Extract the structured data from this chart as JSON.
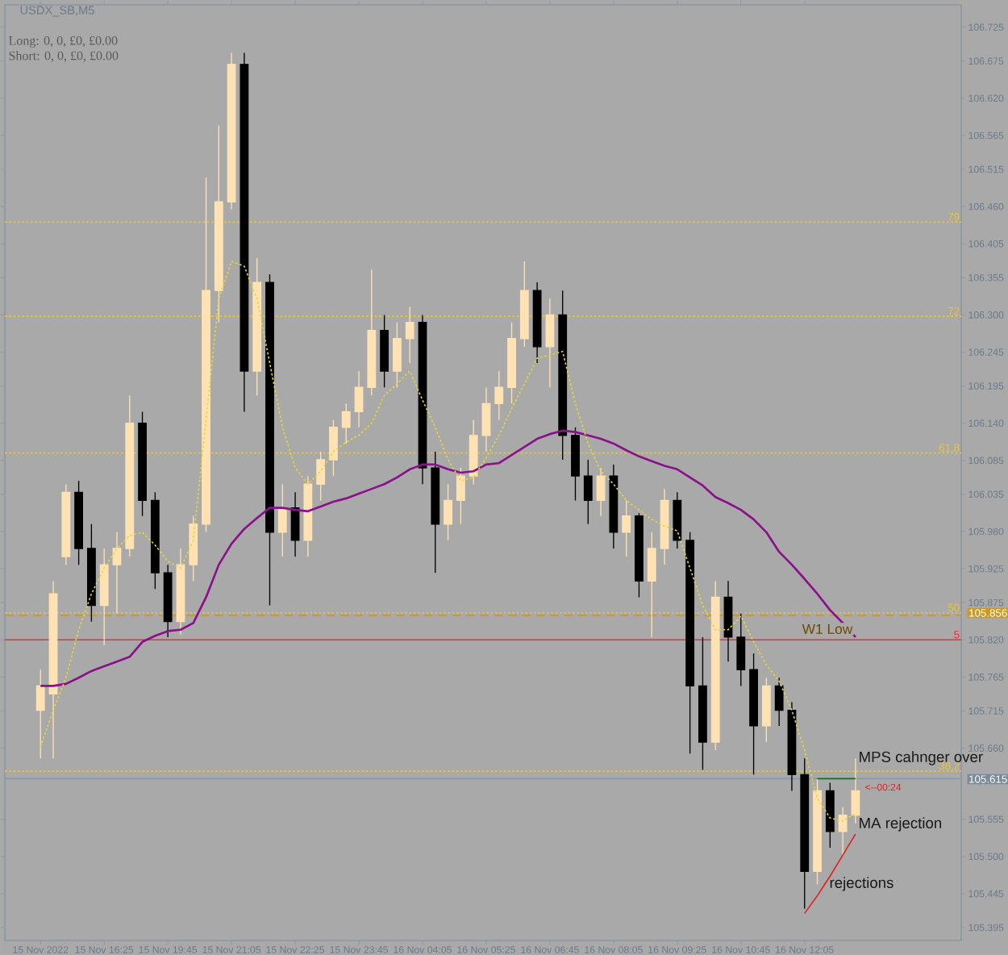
{
  "chart_data": {
    "type": "candlestick",
    "title": "USDX_SB,M5",
    "categories": [
      "15 Nov 2022",
      null,
      null,
      null,
      null,
      "15 Nov 16:25",
      null,
      null,
      null,
      null,
      "15 Nov 19:45",
      null,
      null,
      null,
      null,
      "15 Nov 21:05",
      null,
      null,
      null,
      null,
      "15 Nov 22:25",
      null,
      null,
      null,
      null,
      "15 Nov 23:45",
      null,
      null,
      null,
      null,
      "16 Nov 04:05",
      null,
      null,
      null,
      null,
      "16 Nov 05:25",
      null,
      null,
      null,
      null,
      "16 Nov 06:45",
      null,
      null,
      null,
      null,
      "16 Nov 08:05",
      null,
      null,
      null,
      null,
      "16 Nov 09:25",
      null,
      null,
      null,
      null,
      "16 Nov 10:45",
      null,
      null,
      null,
      null,
      "16 Nov 12:05",
      null,
      null,
      null,
      null
    ],
    "ohlc": [
      [
        105.716,
        105.776,
        105.645,
        105.752
      ],
      [
        105.74,
        105.907,
        105.645,
        105.888
      ],
      [
        105.943,
        106.05,
        105.931,
        106.038
      ],
      [
        106.038,
        106.055,
        105.931,
        105.955
      ],
      [
        105.955,
        105.991,
        105.847,
        105.871
      ],
      [
        105.871,
        105.955,
        105.812,
        105.931
      ],
      [
        105.931,
        105.979,
        105.859,
        105.955
      ],
      [
        105.955,
        106.181,
        105.943,
        106.14
      ],
      [
        106.14,
        106.157,
        106.003,
        106.026
      ],
      [
        106.026,
        106.038,
        105.895,
        105.919
      ],
      [
        105.919,
        105.931,
        105.824,
        105.847
      ],
      [
        105.847,
        105.955,
        105.828,
        105.931
      ],
      [
        105.931,
        106.003,
        105.907,
        105.991
      ],
      [
        105.991,
        106.503,
        105.979,
        106.336
      ],
      [
        106.336,
        106.58,
        106.289,
        106.467
      ],
      [
        106.467,
        106.687,
        106.456,
        106.67
      ],
      [
        106.67,
        106.687,
        106.157,
        106.217
      ],
      [
        106.217,
        106.384,
        106.181,
        106.348
      ],
      [
        106.348,
        106.36,
        105.871,
        105.979
      ],
      [
        105.979,
        106.05,
        105.943,
        106.015
      ],
      [
        106.015,
        106.038,
        105.943,
        105.967
      ],
      [
        105.967,
        106.062,
        105.943,
        106.05
      ],
      [
        106.05,
        106.098,
        106.026,
        106.086
      ],
      [
        106.086,
        106.145,
        106.062,
        106.134
      ],
      [
        106.134,
        106.169,
        106.11,
        106.157
      ],
      [
        106.157,
        106.217,
        106.134,
        106.193
      ],
      [
        106.193,
        106.367,
        106.181,
        106.277
      ],
      [
        106.277,
        106.3,
        106.193,
        106.217
      ],
      [
        106.217,
        106.289,
        106.193,
        106.265
      ],
      [
        106.265,
        106.312,
        106.229,
        106.289
      ],
      [
        106.289,
        106.3,
        106.05,
        106.074
      ],
      [
        106.074,
        106.098,
        105.919,
        105.991
      ],
      [
        105.991,
        106.05,
        105.967,
        106.026
      ],
      [
        106.026,
        106.074,
        105.991,
        106.062
      ],
      [
        106.062,
        106.145,
        106.05,
        106.122
      ],
      [
        106.122,
        106.193,
        106.098,
        106.169
      ],
      [
        106.169,
        106.217,
        106.145,
        106.193
      ],
      [
        106.193,
        106.289,
        106.169,
        106.265
      ],
      [
        106.265,
        106.379,
        106.253,
        106.336
      ],
      [
        106.336,
        106.348,
        106.229,
        106.253
      ],
      [
        106.253,
        106.324,
        106.193,
        106.3
      ],
      [
        106.3,
        106.336,
        106.086,
        106.122
      ],
      [
        106.122,
        106.134,
        106.026,
        106.062
      ],
      [
        106.062,
        106.086,
        105.991,
        106.026
      ],
      [
        106.026,
        106.074,
        106.003,
        106.062
      ],
      [
        106.062,
        106.079,
        105.955,
        105.979
      ],
      [
        105.979,
        106.026,
        105.943,
        106.003
      ],
      [
        106.003,
        106.007,
        105.883,
        105.907
      ],
      [
        105.907,
        105.979,
        105.824,
        105.955
      ],
      [
        105.955,
        106.043,
        105.931,
        106.026
      ],
      [
        106.026,
        106.038,
        105.955,
        105.967
      ],
      [
        105.967,
        105.979,
        105.652,
        105.752
      ],
      [
        105.752,
        105.824,
        105.628,
        105.669
      ],
      [
        105.669,
        105.907,
        105.657,
        105.883
      ],
      [
        105.883,
        105.907,
        105.788,
        105.824
      ],
      [
        105.824,
        105.859,
        105.752,
        105.776
      ],
      [
        105.776,
        105.8,
        105.621,
        105.693
      ],
      [
        105.693,
        105.764,
        105.669,
        105.752
      ],
      [
        105.752,
        105.764,
        105.693,
        105.716
      ],
      [
        105.716,
        105.728,
        105.597,
        105.621
      ],
      [
        105.621,
        105.645,
        105.423,
        105.478
      ],
      [
        105.478,
        105.614,
        105.459,
        105.597
      ],
      [
        105.597,
        105.609,
        105.513,
        105.537
      ],
      [
        105.537,
        105.573,
        105.502,
        105.561
      ],
      [
        105.561,
        105.645,
        105.549,
        105.597
      ]
    ],
    "colors": [
      "#ffe2b4",
      "#ffe2b4",
      "#ffe2b4",
      "#000000",
      "#000000",
      "#ffe2b4",
      "#ffe2b4",
      "#ffe2b4",
      "#000000",
      "#000000",
      "#000000",
      "#ffe2b4",
      "#ffe2b4",
      "#ffe2b4",
      "#ffe2b4",
      "#ffe2b4",
      "#000000",
      "#ffe2b4",
      "#000000",
      "#ffe2b4",
      "#000000",
      "#ffe2b4",
      "#ffe2b4",
      "#ffe2b4",
      "#ffe2b4",
      "#ffe2b4",
      "#ffe2b4",
      "#000000",
      "#ffe2b4",
      "#ffe2b4",
      "#000000",
      "#000000",
      "#ffe2b4",
      "#ffe2b4",
      "#ffe2b4",
      "#ffe2b4",
      "#ffe2b4",
      "#ffe2b4",
      "#ffe2b4",
      "#000000",
      "#ffe2b4",
      "#000000",
      "#000000",
      "#000000",
      "#ffe2b4",
      "#000000",
      "#ffe2b4",
      "#000000",
      "#ffe2b4",
      "#ffe2b4",
      "#000000",
      "#000000",
      "#000000",
      "#ffe2b4",
      "#000000",
      "#000000",
      "#000000",
      "#ffe2b4",
      "#000000",
      "#000000",
      "#000000",
      "#ffe2b4",
      "#000000",
      "#ffe2b4",
      "#ffe2b4"
    ],
    "series": [
      {
        "type": "line",
        "color": "#8b108b",
        "line_style": "solid",
        "values": [
          105.752,
          105.752,
          105.755,
          105.764,
          105.774,
          105.781,
          105.788,
          105.795,
          105.817,
          105.826,
          105.833,
          105.835,
          105.845,
          105.883,
          105.931,
          105.962,
          105.984,
          106.0,
          106.015,
          106.015,
          106.012,
          106.01,
          106.017,
          106.024,
          106.029,
          106.036,
          106.043,
          106.05,
          106.06,
          106.072,
          106.079,
          106.079,
          106.072,
          106.067,
          106.069,
          106.079,
          106.081,
          106.093,
          106.105,
          106.117,
          106.124,
          106.129,
          106.127,
          106.122,
          106.117,
          106.11,
          106.1,
          106.091,
          106.084,
          106.077,
          106.072,
          106.06,
          106.048,
          106.031,
          106.022,
          106.012,
          105.998,
          105.979,
          105.95,
          105.931,
          105.91,
          105.888,
          105.864,
          105.845,
          105.824
        ]
      },
      {
        "type": "line",
        "color": "#e8d830",
        "line_style": "dotted",
        "values": [
          105.662,
          105.716,
          105.764,
          105.835,
          105.888,
          105.926,
          105.955,
          105.974,
          105.979,
          105.96,
          105.936,
          105.926,
          105.967,
          106.145,
          106.324,
          106.379,
          106.372,
          106.324,
          106.229,
          106.134,
          106.074,
          106.05,
          106.069,
          106.098,
          106.112,
          106.122,
          106.14,
          106.181,
          106.198,
          106.217,
          106.174,
          106.134,
          106.086,
          106.055,
          106.06,
          106.089,
          106.122,
          106.162,
          106.198,
          106.236,
          106.241,
          106.246,
          106.169,
          106.11,
          106.069,
          106.05,
          106.026,
          106.012,
          105.998,
          105.988,
          105.981,
          105.926,
          105.871,
          105.835,
          105.835,
          105.855,
          105.817,
          105.783,
          105.759,
          105.716,
          105.657,
          105.586,
          105.557,
          105.552,
          105.564
        ]
      },
      {
        "type": "line",
        "color": "#0a7a0a",
        "line_style": "solid",
        "values": [
          null,
          null,
          null,
          null,
          null,
          null,
          null,
          null,
          null,
          null,
          null,
          null,
          null,
          null,
          null,
          null,
          null,
          null,
          null,
          null,
          null,
          null,
          null,
          null,
          null,
          null,
          null,
          null,
          null,
          null,
          null,
          null,
          null,
          null,
          null,
          null,
          null,
          null,
          null,
          null,
          null,
          null,
          null,
          null,
          null,
          null,
          null,
          null,
          null,
          null,
          null,
          null,
          null,
          null,
          null,
          null,
          null,
          null,
          null,
          null,
          null,
          105.615,
          105.615,
          105.615,
          105.615
        ]
      },
      {
        "type": "line",
        "color": "#e02020",
        "line_style": "solid",
        "values": [
          null,
          null,
          null,
          null,
          null,
          null,
          null,
          null,
          null,
          null,
          null,
          null,
          null,
          null,
          null,
          null,
          null,
          null,
          null,
          null,
          null,
          null,
          null,
          null,
          null,
          null,
          null,
          null,
          null,
          null,
          null,
          null,
          null,
          null,
          null,
          null,
          null,
          null,
          null,
          null,
          null,
          null,
          null,
          null,
          null,
          null,
          null,
          null,
          null,
          null,
          null,
          null,
          null,
          null,
          null,
          null,
          null,
          null,
          null,
          null,
          105.416,
          105.442,
          105.471,
          105.502,
          105.533
        ]
      }
    ],
    "ylim": [
      105.376,
      106.758
    ],
    "yticks": [
      105.395,
      105.445,
      {
        "value": 105.5,
        "label": "105.500"
      },
      105.555,
      {
        "value": 105.66,
        "label": "105.660"
      },
      105.715,
      105.765,
      {
        "value": 105.82,
        "label": "105.820"
      },
      105.875,
      105.925,
      {
        "value": 105.98,
        "label": "105.980"
      },
      106.035,
      106.085,
      {
        "value": 106.14,
        "label": "106.140"
      },
      106.195,
      106.245,
      {
        "value": 106.3,
        "label": "106.300"
      },
      106.355,
      106.405,
      {
        "value": 106.46,
        "label": "106.460"
      },
      106.515,
      106.565,
      {
        "value": 106.62,
        "label": "106.620"
      },
      106.675,
      106.725
    ],
    "ref_lines": [
      {
        "axis": "y",
        "value": 106.437,
        "color": "#e8c830",
        "line_style": "dotted"
      },
      {
        "axis": "y",
        "value": 106.298,
        "color": "#e8c830",
        "line_style": "dotted"
      },
      {
        "axis": "y",
        "value": 106.096,
        "color": "#e8c830",
        "line_style": "dotted"
      },
      {
        "axis": "y",
        "value": 105.86,
        "color": "#e8c830",
        "line_style": "dotted"
      },
      {
        "axis": "y",
        "value": 105.856,
        "color": "#c89a28",
        "line_style": "dashed"
      },
      {
        "axis": "y",
        "value": 105.82,
        "color": "#e83030",
        "line_style": "solid"
      },
      {
        "axis": "y",
        "value": 105.626,
        "color": "#e8c830",
        "line_style": "dotted"
      },
      {
        "axis": "y",
        "value": 105.615,
        "color": "#8a9aaa",
        "line_style": "solid"
      }
    ],
    "annotations": [
      "Long: 0, 0, £0, £0.00",
      "Short: 0, 0, £0, £0.00",
      "W1 Low",
      "MPS cahnger over",
      "MA rejection",
      "rejections",
      "<--00:24",
      "105.856",
      "105.615",
      {
        "text": "79",
        "y": 106.437
      },
      {
        "text": "72",
        "y": 106.298
      },
      {
        "text": "61.8",
        "y": 106.096
      },
      {
        "text": "50",
        "y": 105.86
      },
      {
        "text": "5",
        "y": 105.82
      },
      {
        "text": "38.2",
        "y": 105.626
      }
    ]
  }
}
